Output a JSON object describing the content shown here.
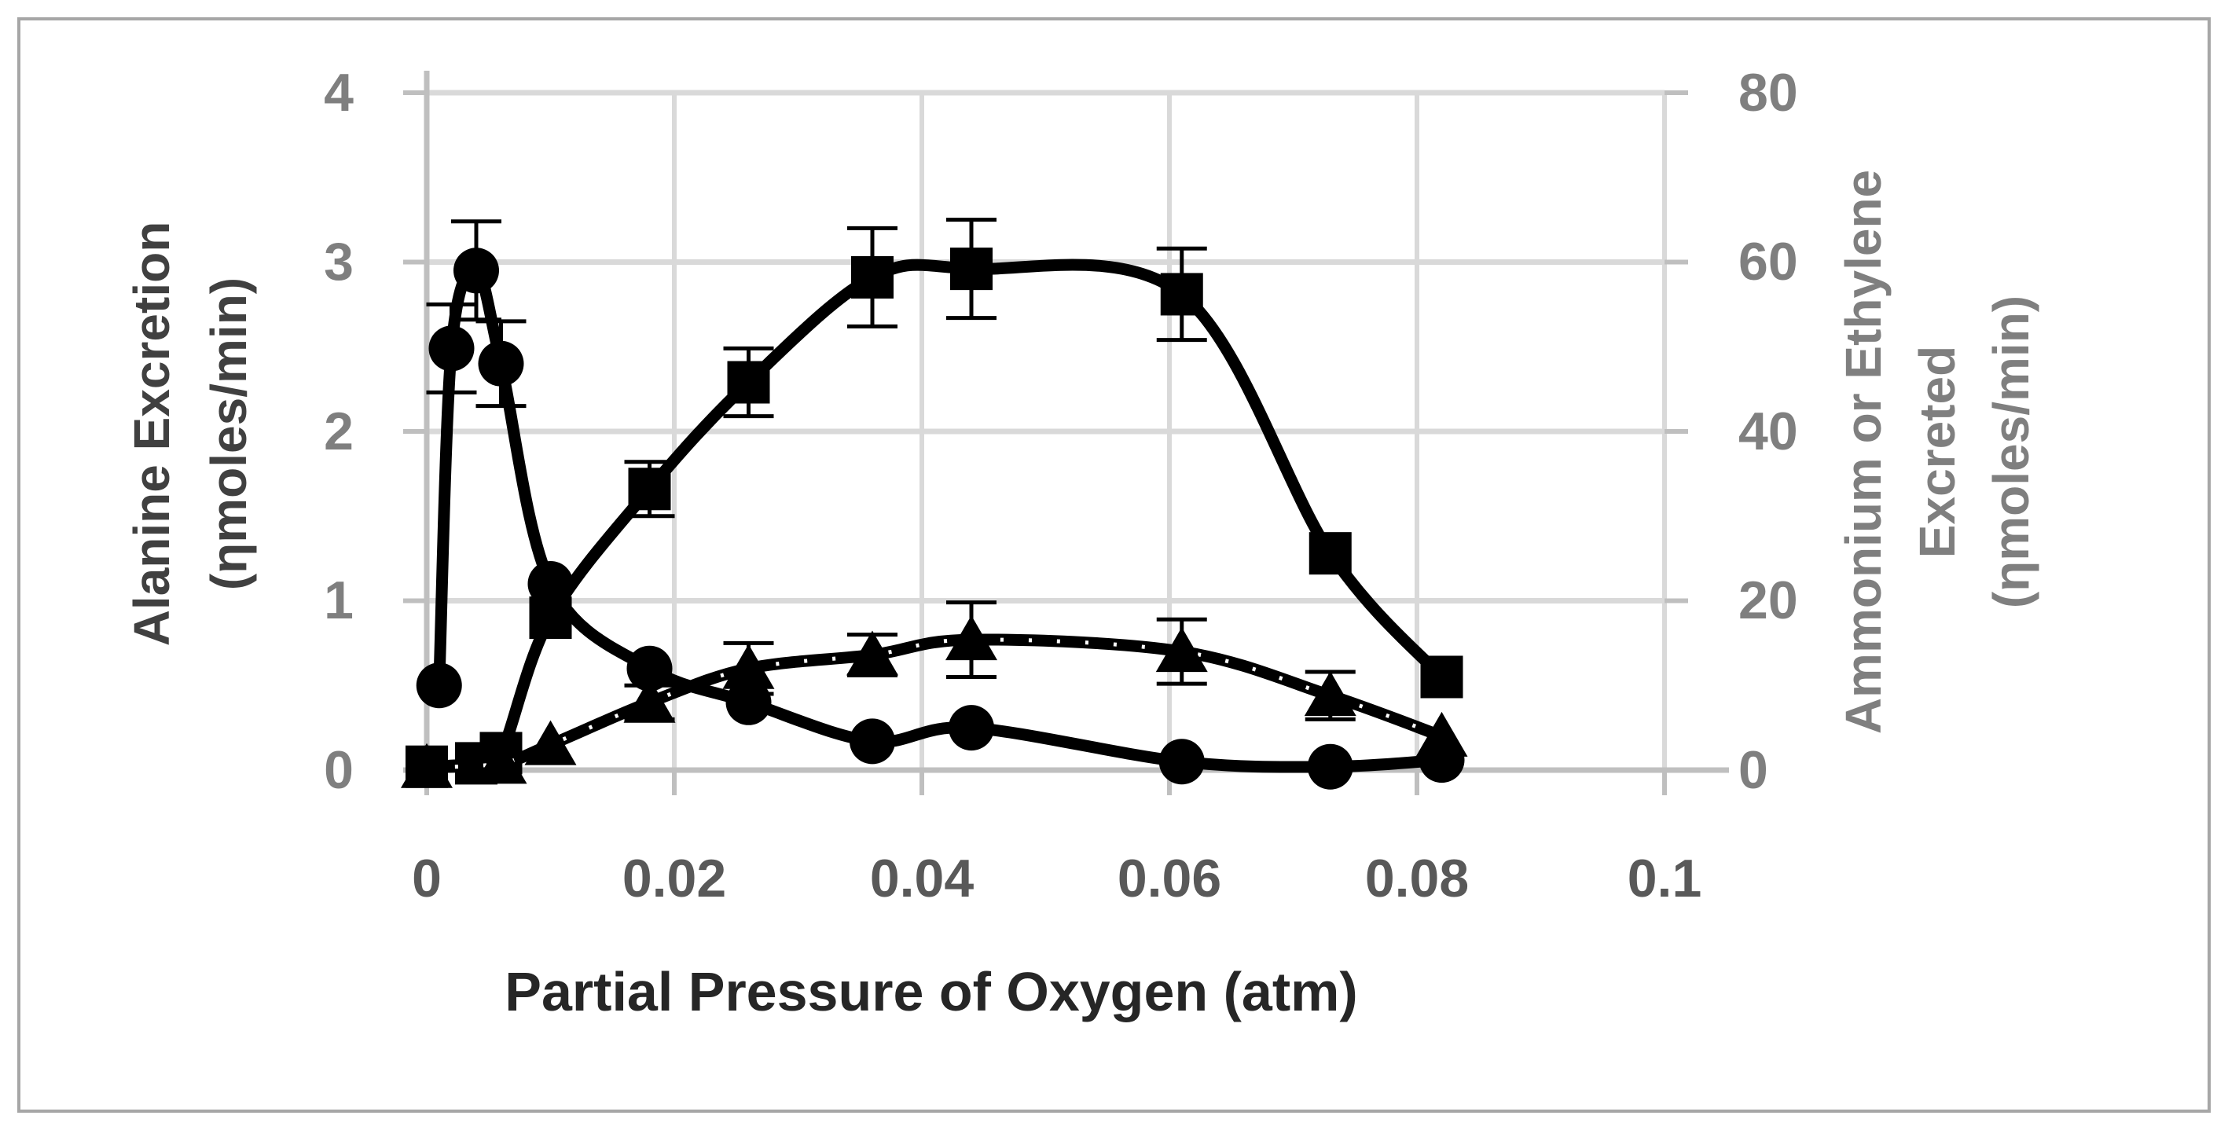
{
  "window": {
    "background": "#ffffff",
    "frame_border_color": "#a6a6a6"
  },
  "text_colors": {
    "x_tick_labels": "#595959",
    "y_tick_labels": "#7f7f7f",
    "x_axis_title": "#262626",
    "left_axis_title": "#404040",
    "right_axis_title": "#7f7f7f"
  },
  "chart_data": {
    "type": "line",
    "title": "",
    "legend_position": "none",
    "grid": true,
    "gridline_color": "#d9d9d9",
    "axis_line_color": "#bfbfbf",
    "series_color": "#000000",
    "x_axis": {
      "label": "Partial Pressure of Oxygen (atm)",
      "min": 0,
      "max": 0.1,
      "ticks": [
        "0",
        "0.02",
        "0.04",
        "0.06",
        "0.08",
        "0.1"
      ],
      "tick_values": [
        0,
        0.02,
        0.04,
        0.06,
        0.08,
        0.1
      ]
    },
    "left_axis": {
      "label_lines": [
        "Alanine Excretion",
        "(ηmoles/min)"
      ],
      "min": 0,
      "max": 4,
      "ticks": [
        "0",
        "1",
        "2",
        "3",
        "4"
      ],
      "tick_values": [
        0,
        1,
        2,
        3,
        4
      ]
    },
    "right_axis": {
      "label_lines": [
        "Ammonium or Ethylene",
        "Excreted",
        "(ηmoles/min)"
      ],
      "min": 0,
      "max": 80,
      "ticks": [
        "0",
        "20",
        "40",
        "60",
        "80"
      ],
      "tick_values": [
        0,
        20,
        40,
        60,
        80
      ]
    },
    "series": [
      {
        "name": "square-series",
        "marker": "square",
        "axis": "right",
        "line_style": "solid-smooth",
        "x": [
          0,
          0.004,
          0.006,
          0.01,
          0.018,
          0.026,
          0.036,
          0.044,
          0.061,
          0.073,
          0.082
        ],
        "y": [
          0.4,
          0.8,
          2.0,
          18.0,
          33.2,
          45.8,
          58.2,
          59.2,
          56.2,
          25.6,
          11.0
        ],
        "yerr": [
          0,
          0,
          0,
          0,
          3.2,
          4.0,
          5.8,
          5.8,
          5.4,
          0,
          0
        ]
      },
      {
        "name": "triangle-series",
        "marker": "triangle",
        "axis": "right",
        "line_style": "speckled-smooth",
        "x": [
          0,
          0.006,
          0.01,
          0.018,
          0.026,
          0.036,
          0.044,
          0.061,
          0.073,
          0.082
        ],
        "y": [
          0.3,
          0.8,
          3.0,
          8.0,
          12.0,
          13.6,
          15.4,
          14.0,
          8.8,
          4.0
        ],
        "yerr": [
          0,
          0,
          0,
          2.0,
          3.0,
          2.4,
          4.4,
          3.8,
          2.8,
          0
        ]
      },
      {
        "name": "circle-series",
        "marker": "circle",
        "axis": "left",
        "line_style": "solid-smooth",
        "x": [
          0.001,
          0.002,
          0.004,
          0.006,
          0.01,
          0.018,
          0.026,
          0.036,
          0.044,
          0.061,
          0.073,
          0.082
        ],
        "y": [
          0.5,
          2.49,
          2.95,
          2.4,
          1.1,
          0.6,
          0.4,
          0.17,
          0.25,
          0.05,
          0.02,
          0.06
        ],
        "yerr": [
          0,
          0.26,
          0.29,
          0.25,
          0,
          0,
          0,
          0,
          0,
          0,
          0,
          0
        ]
      }
    ]
  }
}
